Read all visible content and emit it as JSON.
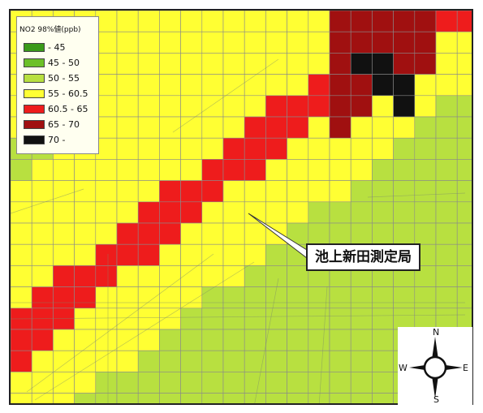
{
  "legend": {
    "title": "NO2 98%値(ppb)",
    "classes": [
      {
        "label": "- 45",
        "color": "#3a9a1a"
      },
      {
        "label": "45 - 50",
        "color": "#6cc028"
      },
      {
        "label": "50 - 55",
        "color": "#b8e040"
      },
      {
        "label": "55 - 60.5",
        "color": "#ffff33"
      },
      {
        "label": "60.5 - 65",
        "color": "#ee1c1c"
      },
      {
        "label": "65 - 70",
        "color": "#a01010"
      },
      {
        "label": "70 -",
        "color": "#111111"
      }
    ]
  },
  "station": {
    "label": "池上新田測定局"
  },
  "compass": {
    "n": "N",
    "e": "E",
    "s": "S",
    "w": "W"
  },
  "colors": {
    "green": "#b8e040",
    "yellow": "#ffff33",
    "red": "#ee1c1c",
    "darkred": "#a01010",
    "black": "#111111",
    "grid": "#8a8a8a"
  }
}
